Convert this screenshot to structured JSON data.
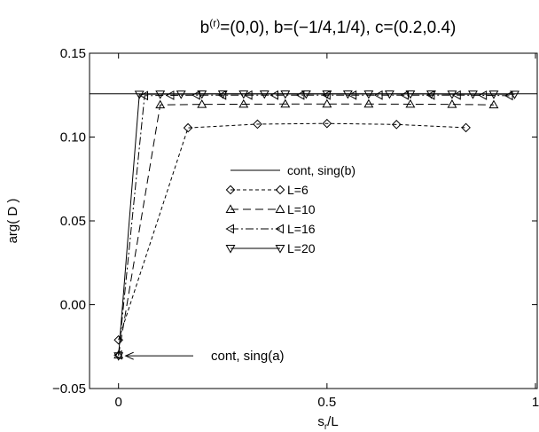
{
  "chart_data": {
    "type": "line",
    "title_main": "b",
    "title_sup": "(r)",
    "title_rest": "=(0,0), b=(−1/4,1/4), c=(0.2,0.4)",
    "xlabel_main": "s",
    "xlabel_sub": "r",
    "xlabel_rest": "/L",
    "ylabel": "arg( D )",
    "xlim": [
      -0.05,
      1.0
    ],
    "ylim": [
      -0.05,
      0.15
    ],
    "x_ticks": [
      0,
      0.5,
      1
    ],
    "x_tick_labels": [
      "0",
      "0.5",
      "1"
    ],
    "y_ticks": [
      -0.05,
      0.0,
      0.05,
      0.1,
      0.15
    ],
    "y_tick_labels": [
      "−0.05",
      "0.00",
      "0.05",
      "0.10",
      "0.15"
    ],
    "grid": false,
    "legend_position": "center-left",
    "reference_lines": [
      {
        "name": "cont, sing(b)",
        "y": 0.1258,
        "style": "solid"
      }
    ],
    "annotation": {
      "text": "cont, sing(a)",
      "x": 0.0,
      "y": -0.0305
    },
    "series": [
      {
        "name": "L=6",
        "marker": "diamond",
        "dash": "4,3",
        "x": [
          0,
          0.1667,
          0.3333,
          0.5,
          0.6667,
          0.8333
        ],
        "y": [
          -0.021,
          0.1055,
          0.1077,
          0.1081,
          0.1075,
          0.1056
        ]
      },
      {
        "name": "L=10",
        "marker": "triangle-up",
        "dash": "9,5",
        "x": [
          0,
          0.1,
          0.2,
          0.3,
          0.4,
          0.5,
          0.6,
          0.7,
          0.8,
          0.9
        ],
        "y": [
          -0.03,
          0.1192,
          0.1195,
          0.1196,
          0.1197,
          0.1197,
          0.1197,
          0.1196,
          0.1195,
          0.1192
        ]
      },
      {
        "name": "L=16",
        "marker": "triangle-left",
        "dash": "9,3,2,3",
        "x": [
          0,
          0.0625,
          0.125,
          0.1875,
          0.25,
          0.3125,
          0.375,
          0.4375,
          0.5,
          0.5625,
          0.625,
          0.6875,
          0.75,
          0.8125,
          0.875,
          0.9375
        ],
        "y": [
          -0.03,
          0.1247,
          0.1249,
          0.125,
          0.125,
          0.125,
          0.125,
          0.125,
          0.125,
          0.125,
          0.125,
          0.125,
          0.125,
          0.125,
          0.1249,
          0.1247
        ]
      },
      {
        "name": "L=20",
        "marker": "triangle-down",
        "dash": "",
        "x": [
          0,
          0.05,
          0.1,
          0.15,
          0.2,
          0.25,
          0.3,
          0.35,
          0.4,
          0.45,
          0.5,
          0.55,
          0.6,
          0.65,
          0.7,
          0.75,
          0.8,
          0.85,
          0.9,
          0.95
        ],
        "y": [
          -0.0305,
          0.1255,
          0.1256,
          0.1256,
          0.1257,
          0.1257,
          0.1257,
          0.1257,
          0.1257,
          0.1257,
          0.1257,
          0.1257,
          0.1257,
          0.1257,
          0.1257,
          0.1257,
          0.1256,
          0.1256,
          0.1256,
          0.1255
        ]
      }
    ]
  }
}
